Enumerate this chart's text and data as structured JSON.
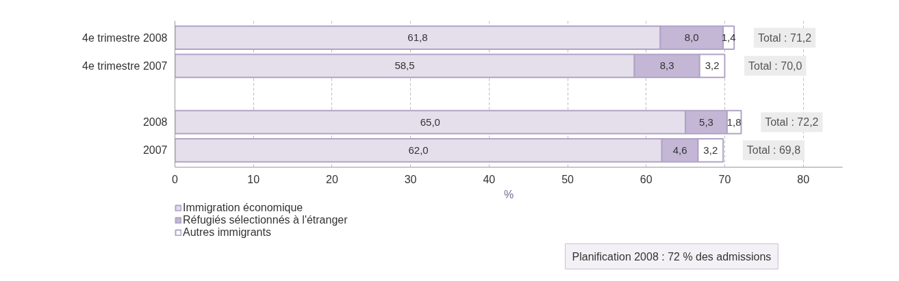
{
  "chart_data": {
    "type": "bar",
    "orientation": "horizontal",
    "stacked": true,
    "categories": [
      "4e trimestre 2008",
      "4e trimestre 2007",
      null,
      "2008",
      "2007"
    ],
    "series": [
      {
        "name": "Immigration économique",
        "color": "#e4dfeb",
        "values": [
          61.8,
          58.5,
          null,
          65.0,
          62.0
        ],
        "value_labels": [
          "61,8",
          "58,5",
          null,
          "65,0",
          "62,0"
        ]
      },
      {
        "name": "Réfugiés sélectionnés à l'étranger",
        "color": "#c3b7d5",
        "values": [
          8.0,
          8.3,
          null,
          5.3,
          4.6
        ],
        "value_labels": [
          "8,0",
          "8,3",
          null,
          "5,3",
          "4,6"
        ]
      },
      {
        "name": "Autres immigrants",
        "color": "#ffffff",
        "values": [
          1.4,
          3.2,
          null,
          1.8,
          3.2
        ],
        "value_labels": [
          "1,4",
          "3,2",
          null,
          "1,8",
          "3,2"
        ]
      }
    ],
    "totals": [
      "Total : 71,2",
      "Total : 70,0",
      null,
      "Total : 72,2",
      "Total : 69,8"
    ],
    "xlabel": "%",
    "xlim": [
      0,
      85
    ],
    "xticks": [
      0,
      10,
      20,
      30,
      40,
      50,
      60,
      70,
      80
    ],
    "grid": "x",
    "legend": "bottom left",
    "annotations": [
      "Planification 2008 : 72 % des admissions"
    ]
  }
}
